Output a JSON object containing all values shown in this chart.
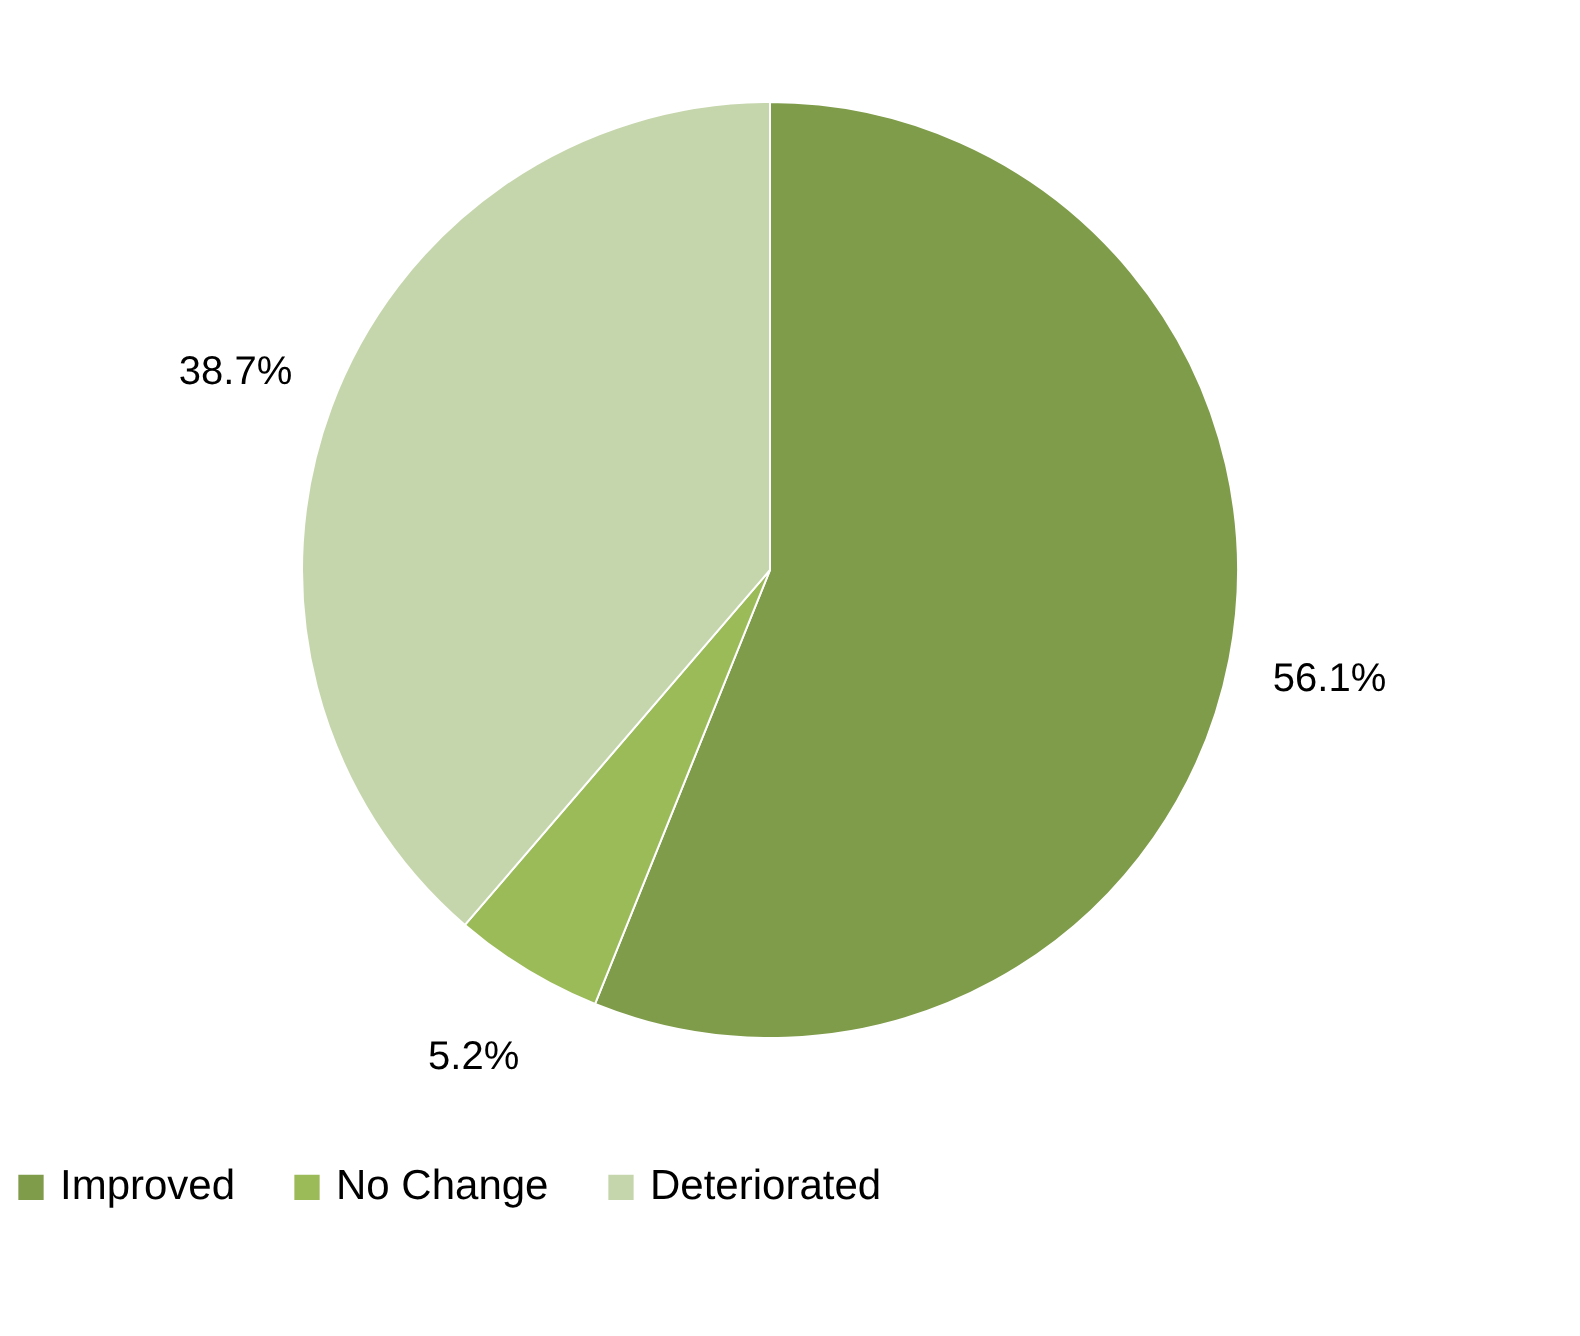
{
  "chart_data": {
    "type": "pie",
    "categories": [
      "Improved",
      "No Change",
      "Deteriorated"
    ],
    "values": [
      56.1,
      5.2,
      38.7
    ],
    "colors": [
      "#7f9c4a",
      "#9bbb59",
      "#c6d6ac"
    ],
    "value_labels": [
      "56.1%",
      "5.2%",
      "38.7%"
    ],
    "legend": "bottom"
  }
}
